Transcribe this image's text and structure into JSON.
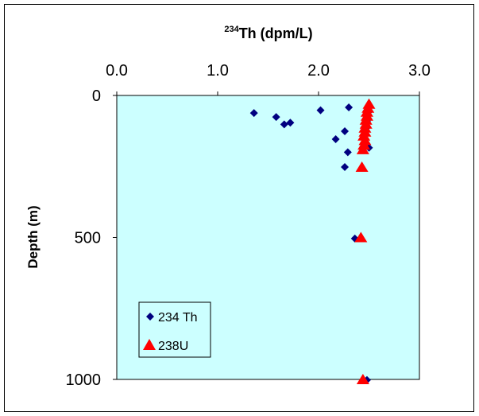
{
  "chart_data": {
    "type": "scatter",
    "title_sup": "234",
    "title_main": "Th (dpm/L)",
    "ylabel": "Depth (m)",
    "xlim": [
      0,
      3.0
    ],
    "ylim": [
      0,
      1000
    ],
    "y_inverted": true,
    "x_axis_position": "top",
    "x_ticks": [
      "0.0",
      "1.0",
      "2.0",
      "3.0"
    ],
    "x_tick_values": [
      0,
      1,
      2,
      3
    ],
    "y_ticks": [
      "0",
      "500",
      "1000"
    ],
    "y_tick_values": [
      0,
      500,
      1000
    ],
    "plot_background": "#ccffff",
    "grid": false,
    "legend_position": "bottom-left",
    "series": [
      {
        "name": "234 Th",
        "marker": "diamond",
        "color": "#000080",
        "points": [
          [
            1.36,
            62
          ],
          [
            1.58,
            76
          ],
          [
            1.66,
            102
          ],
          [
            1.72,
            96
          ],
          [
            2.02,
            52
          ],
          [
            2.3,
            42
          ],
          [
            2.26,
            126
          ],
          [
            2.17,
            154
          ],
          [
            2.29,
            200
          ],
          [
            2.26,
            252
          ],
          [
            2.5,
            36
          ],
          [
            2.49,
            60
          ],
          [
            2.48,
            90
          ],
          [
            2.47,
            116
          ],
          [
            2.5,
            184
          ],
          [
            2.46,
            168
          ],
          [
            2.36,
            504
          ],
          [
            2.48,
            1002
          ]
        ]
      },
      {
        "name": "238U",
        "marker": "triangle",
        "color": "#ff0000",
        "points": [
          [
            2.5,
            30
          ],
          [
            2.49,
            44
          ],
          [
            2.48,
            58
          ],
          [
            2.48,
            72
          ],
          [
            2.47,
            86
          ],
          [
            2.47,
            100
          ],
          [
            2.46,
            114
          ],
          [
            2.46,
            128
          ],
          [
            2.45,
            142
          ],
          [
            2.46,
            158
          ],
          [
            2.45,
            174
          ],
          [
            2.44,
            190
          ],
          [
            2.43,
            252
          ],
          [
            2.42,
            500
          ],
          [
            2.44,
            1000
          ]
        ]
      }
    ]
  }
}
